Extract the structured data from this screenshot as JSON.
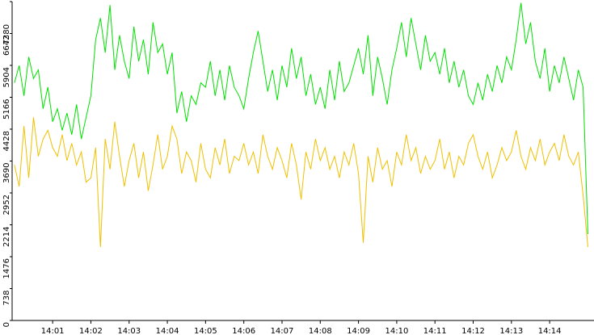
{
  "chart_data": {
    "type": "line",
    "x": [
      0,
      0.125,
      0.25,
      0.375,
      0.5,
      0.625,
      0.75,
      0.875,
      1,
      1.125,
      1.25,
      1.375,
      1.5,
      1.625,
      1.75,
      1.875,
      2,
      2.125,
      2.25,
      2.375,
      2.5,
      2.625,
      2.75,
      2.875,
      3,
      3.125,
      3.25,
      3.375,
      3.5,
      3.625,
      3.75,
      3.875,
      4,
      4.125,
      4.25,
      4.375,
      4.5,
      4.625,
      4.75,
      4.875,
      5,
      5.125,
      5.25,
      5.375,
      5.5,
      5.625,
      5.75,
      5.875,
      6,
      6.125,
      6.25,
      6.375,
      6.5,
      6.625,
      6.75,
      6.875,
      7,
      7.125,
      7.25,
      7.375,
      7.5,
      7.625,
      7.75,
      7.875,
      8,
      8.125,
      8.25,
      8.375,
      8.5,
      8.625,
      8.75,
      8.875,
      9,
      9.125,
      9.25,
      9.375,
      9.5,
      9.625,
      9.75,
      9.875,
      10,
      10.125,
      10.25,
      10.375,
      10.5,
      10.625,
      10.75,
      10.875,
      11,
      11.125,
      11.25,
      11.375,
      11.5,
      11.625,
      11.75,
      11.875,
      12,
      12.125,
      12.25,
      12.375,
      12.5,
      12.625,
      12.75,
      12.875,
      13,
      13.125,
      13.25,
      13.375,
      13.5,
      13.625,
      13.75,
      13.875,
      14,
      14.125,
      14.25,
      14.375,
      14.5,
      14.625,
      14.75,
      14.875,
      15
    ],
    "series": [
      {
        "color": "#00e000",
        "values": [
          5500,
          5900,
          5200,
          6100,
          5600,
          5800,
          4900,
          5400,
          4600,
          4900,
          4400,
          4800,
          4300,
          5000,
          4200,
          4700,
          5200,
          6500,
          7000,
          6200,
          7300,
          5800,
          6600,
          6000,
          5600,
          6800,
          6000,
          6500,
          5700,
          6900,
          6200,
          6400,
          5700,
          6200,
          4800,
          5300,
          4600,
          5200,
          5000,
          5500,
          5400,
          6000,
          5200,
          5800,
          5100,
          5900,
          5400,
          5200,
          4900,
          5600,
          6200,
          6700,
          6000,
          5300,
          5800,
          5100,
          5900,
          5400,
          6300,
          5600,
          6100,
          5200,
          5700,
          5000,
          5400,
          4900,
          5800,
          5100,
          6000,
          5300,
          5500,
          5900,
          6300,
          5700,
          6600,
          5200,
          6100,
          5600,
          5000,
          5800,
          6300,
          6900,
          6100,
          7000,
          6400,
          5800,
          6600,
          6000,
          6200,
          5700,
          6300,
          5500,
          6000,
          5400,
          5800,
          5200,
          5000,
          5500,
          5100,
          5700,
          5300,
          5900,
          5500,
          6100,
          5800,
          6500,
          7350,
          6400,
          6900,
          6000,
          5600,
          6300,
          5300,
          5900,
          5500,
          6100,
          5600,
          5100,
          5800,
          5400,
          2000
        ]
      },
      {
        "color": "#f0c000",
        "values": [
          3600,
          3100,
          4500,
          3300,
          4700,
          3800,
          4200,
          4400,
          4000,
          3800,
          4300,
          3700,
          4100,
          3600,
          3900,
          3200,
          3300,
          4000,
          1700,
          4200,
          3500,
          4600,
          3800,
          3100,
          3700,
          4100,
          3300,
          3900,
          3000,
          3600,
          4300,
          3500,
          3800,
          4500,
          4200,
          3400,
          3900,
          3700,
          3200,
          4100,
          3500,
          3300,
          4000,
          3600,
          4200,
          3400,
          3800,
          3700,
          4100,
          3600,
          3900,
          3400,
          4300,
          3800,
          3500,
          4000,
          3700,
          3300,
          4100,
          3600,
          2800,
          3900,
          3500,
          4200,
          3700,
          4000,
          3500,
          3800,
          3300,
          3900,
          3600,
          4100,
          3400,
          1800,
          3800,
          3200,
          4000,
          3500,
          3700,
          3100,
          3900,
          3600,
          4300,
          3700,
          4000,
          3400,
          3800,
          3500,
          3700,
          4200,
          3500,
          3900,
          3300,
          3800,
          3600,
          4100,
          4300,
          3800,
          3500,
          3900,
          3300,
          3600,
          4000,
          3700,
          3900,
          4400,
          3800,
          3500,
          4000,
          3700,
          4200,
          3600,
          3900,
          4100,
          3700,
          4300,
          3800,
          3600,
          3900,
          2900,
          1700
        ]
      }
    ],
    "xlim": [
      -0.06,
      15.16
    ],
    "xticks": [
      {
        "value": 1,
        "label": "14:01"
      },
      {
        "value": 2,
        "label": "14:02"
      },
      {
        "value": 3,
        "label": "14:03"
      },
      {
        "value": 4,
        "label": "14:04"
      },
      {
        "value": 5,
        "label": "14:05"
      },
      {
        "value": 6,
        "label": "14:06"
      },
      {
        "value": 7,
        "label": "14:07"
      },
      {
        "value": 8,
        "label": "14:08"
      },
      {
        "value": 9,
        "label": "14:09"
      },
      {
        "value": 10,
        "label": "14:10"
      },
      {
        "value": 11,
        "label": "14:11"
      },
      {
        "value": 12,
        "label": "14:12"
      },
      {
        "value": 13,
        "label": "14:13"
      },
      {
        "value": 14,
        "label": "14:14"
      }
    ],
    "ylim": [
      0,
      7380
    ],
    "yticks": [
      0,
      738,
      1476,
      2214,
      2952,
      3690,
      4428,
      5166,
      5904,
      6642,
      7380
    ]
  }
}
